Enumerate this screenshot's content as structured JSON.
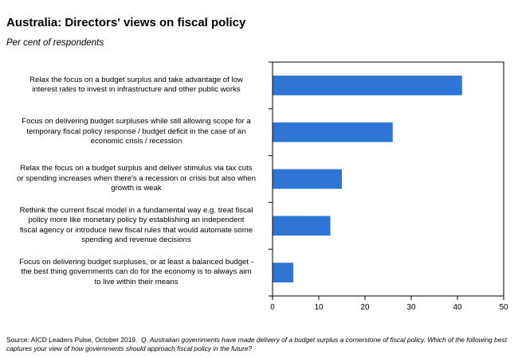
{
  "header": {
    "title": "Australia: Directors' views on fiscal policy",
    "subtitle": "Per cent of respondents"
  },
  "footer": {
    "source": "Source: AICD Leaders Pulse, October 2019.",
    "question": "Q. Australian governments have made delivery of a budget surplus a cornerstone of fiscal policy. Which of the following best captures your view of how governments should approach fiscal policy in the future?"
  },
  "colors": {
    "bar": "#2e75d6",
    "axis": "#000000"
  },
  "chart_data": {
    "type": "bar",
    "orientation": "horizontal",
    "title": "Australia: Directors' views on fiscal policy",
    "subtitle": "Per cent of respondents",
    "xlabel": "",
    "ylabel": "",
    "xlim": [
      0,
      50
    ],
    "xticks": [
      "0",
      "10",
      "20",
      "30",
      "40",
      "50"
    ],
    "grid": false,
    "categories": [
      [
        "Relax the focus on a budget surplus and take advantage of low",
        "interest rates to invest in infrastructure and other public works"
      ],
      [
        "Focus on delivering budget surpluses while still allowing scope for a",
        "temporary fiscal policy response / budget deficit in the case of an",
        "economic crisis / recession"
      ],
      [
        "Relax the focus on a budget surplus and deliver stimulus via tax cuts",
        "or spending increases when there's a recession or crisis but also when",
        "growth is weak"
      ],
      [
        "Rethink the current fiscal model in a fundamental way e.g. treat fiscal",
        "policy more like monetary policy by establishing an independent",
        "fiscal agency or introduce new fiscal rules that would automate some",
        "spending and revenue decisions"
      ],
      [
        "Focus on delivering budget surpluses, or at least a balanced budget -",
        "the best thing governments can do for the economy is to always aim",
        "to live within their means"
      ]
    ],
    "values": [
      41,
      26,
      15,
      12.5,
      4.5
    ]
  }
}
